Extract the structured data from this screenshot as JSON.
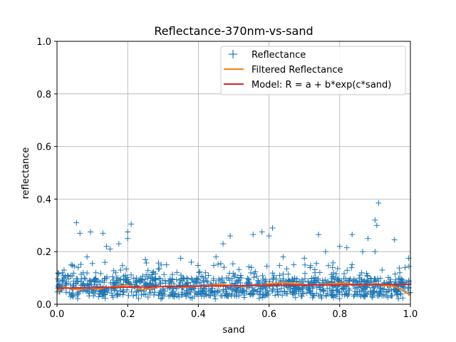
{
  "chart_data": {
    "type": "scatter",
    "title": "Reflectance-370nm-vs-sand",
    "xlabel": "sand",
    "ylabel": "reflectance",
    "xlim": [
      0,
      1
    ],
    "ylim": [
      0,
      1
    ],
    "xticks": [
      "0.0",
      "0.2",
      "0.4",
      "0.6",
      "0.8",
      "1.0"
    ],
    "yticks": [
      "0.0",
      "0.2",
      "0.4",
      "0.6",
      "0.8",
      "1.0"
    ],
    "grid": true,
    "legend_position": "top-right",
    "series": [
      {
        "name": "Reflectance",
        "kind": "scatter",
        "marker": "plus",
        "color": "#1f77b4",
        "points": [
          [
            0.055,
            0.31
          ],
          [
            0.095,
            0.275
          ],
          [
            0.13,
            0.27
          ],
          [
            0.2,
            0.275
          ],
          [
            0.21,
            0.305
          ],
          [
            0.2,
            0.25
          ],
          [
            0.175,
            0.23
          ],
          [
            0.065,
            0.27
          ],
          [
            0.49,
            0.26
          ],
          [
            0.555,
            0.265
          ],
          [
            0.58,
            0.275
          ],
          [
            0.61,
            0.29
          ],
          [
            0.6,
            0.26
          ],
          [
            0.74,
            0.265
          ],
          [
            0.835,
            0.265
          ],
          [
            0.9,
            0.32
          ],
          [
            0.905,
            0.3
          ],
          [
            0.91,
            0.385
          ],
          [
            0.88,
            0.25
          ],
          [
            0.955,
            0.245
          ],
          [
            0.995,
            0.175
          ],
          [
            0.47,
            0.23
          ],
          [
            0.76,
            0.2
          ],
          [
            0.8,
            0.22
          ],
          [
            0.82,
            0.215
          ],
          [
            0.865,
            0.2
          ],
          [
            0.9,
            0.2
          ],
          [
            0.64,
            0.18
          ],
          [
            0.7,
            0.175
          ],
          [
            0.45,
            0.18
          ],
          [
            0.35,
            0.175
          ],
          [
            0.25,
            0.17
          ],
          [
            0.15,
            0.21
          ],
          [
            0.14,
            0.22
          ],
          [
            0.1,
            0.155
          ],
          [
            0.085,
            0.18
          ],
          [
            0.04,
            0.15
          ],
          [
            0.02,
            0.13
          ],
          [
            0.015,
            0.12
          ],
          [
            0.03,
            0.11
          ],
          [
            0.31,
            0.15
          ],
          [
            0.38,
            0.16
          ],
          [
            0.55,
            0.14
          ],
          [
            0.67,
            0.15
          ],
          [
            0.73,
            0.12
          ],
          [
            0.78,
            0.14
          ],
          [
            0.92,
            0.13
          ],
          [
            0.97,
            0.12
          ],
          [
            0.985,
            0.14
          ],
          [
            0.06,
            0.14
          ],
          [
            0.11,
            0.12
          ],
          [
            0.18,
            0.13
          ],
          [
            0.27,
            0.12
          ],
          [
            0.42,
            0.12
          ],
          [
            0.52,
            0.11
          ],
          [
            0.63,
            0.11
          ]
        ]
      },
      {
        "name": "Filtered Reflectance",
        "kind": "line",
        "color": "#ff7f0e",
        "points": [
          [
            0.0,
            0.045
          ],
          [
            0.01,
            0.06
          ],
          [
            0.02,
            0.065
          ],
          [
            0.04,
            0.06
          ],
          [
            0.06,
            0.055
          ],
          [
            0.08,
            0.062
          ],
          [
            0.1,
            0.06
          ],
          [
            0.12,
            0.058
          ],
          [
            0.14,
            0.064
          ],
          [
            0.16,
            0.066
          ],
          [
            0.18,
            0.07
          ],
          [
            0.2,
            0.072
          ],
          [
            0.22,
            0.065
          ],
          [
            0.24,
            0.055
          ],
          [
            0.26,
            0.058
          ],
          [
            0.28,
            0.065
          ],
          [
            0.3,
            0.068
          ],
          [
            0.32,
            0.07
          ],
          [
            0.34,
            0.068
          ],
          [
            0.36,
            0.065
          ],
          [
            0.38,
            0.067
          ],
          [
            0.4,
            0.068
          ],
          [
            0.42,
            0.07
          ],
          [
            0.44,
            0.072
          ],
          [
            0.46,
            0.075
          ],
          [
            0.48,
            0.073
          ],
          [
            0.5,
            0.07
          ],
          [
            0.52,
            0.068
          ],
          [
            0.54,
            0.07
          ],
          [
            0.56,
            0.072
          ],
          [
            0.58,
            0.073
          ],
          [
            0.6,
            0.078
          ],
          [
            0.62,
            0.08
          ],
          [
            0.64,
            0.082
          ],
          [
            0.66,
            0.08
          ],
          [
            0.68,
            0.078
          ],
          [
            0.7,
            0.075
          ],
          [
            0.72,
            0.073
          ],
          [
            0.74,
            0.074
          ],
          [
            0.76,
            0.076
          ],
          [
            0.78,
            0.078
          ],
          [
            0.8,
            0.08
          ],
          [
            0.82,
            0.079
          ],
          [
            0.84,
            0.075
          ],
          [
            0.86,
            0.072
          ],
          [
            0.88,
            0.075
          ],
          [
            0.9,
            0.078
          ],
          [
            0.92,
            0.072
          ],
          [
            0.94,
            0.07
          ],
          [
            0.96,
            0.065
          ],
          [
            0.98,
            0.05
          ],
          [
            1.0,
            0.035
          ]
        ]
      },
      {
        "name": "Model: R = a + b*exp(c*sand)",
        "kind": "line",
        "color": "#d62728",
        "points": [
          [
            0.0,
            0.061
          ],
          [
            0.1,
            0.063
          ],
          [
            0.2,
            0.065
          ],
          [
            0.3,
            0.067
          ],
          [
            0.4,
            0.069
          ],
          [
            0.5,
            0.07
          ],
          [
            0.6,
            0.072
          ],
          [
            0.7,
            0.073
          ],
          [
            0.8,
            0.074
          ],
          [
            0.9,
            0.075
          ],
          [
            1.0,
            0.076
          ]
        ]
      }
    ]
  }
}
